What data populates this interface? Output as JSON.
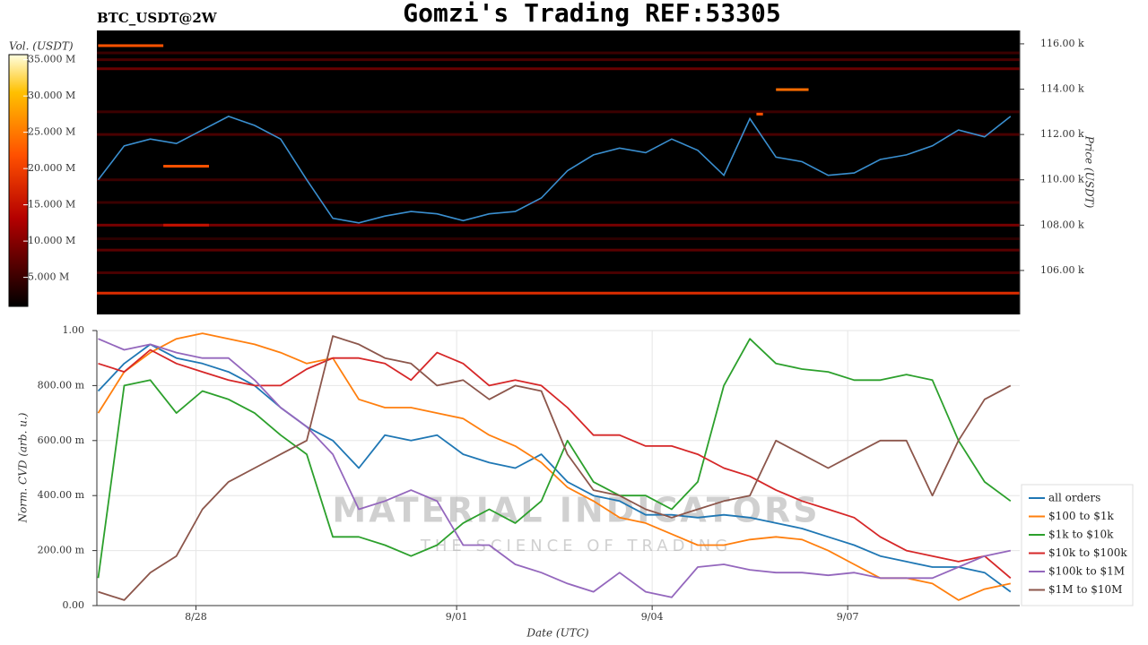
{
  "title": "Gomzi's Trading REF:53305",
  "chart_data": [
    {
      "type": "heatmap",
      "subtitle": "BTC_USDT@2W",
      "y_label": "Price (USDT)",
      "colorbar_label": "Vol. (USDT)",
      "xlim": [
        26.48,
        40.64
      ],
      "ylim": [
        104060,
        116590
      ],
      "yticks": [
        {
          "value": 106000,
          "label": "106.00 k"
        },
        {
          "value": 108000,
          "label": "108.00 k"
        },
        {
          "value": 110000,
          "label": "110.00 k"
        },
        {
          "value": 112000,
          "label": "112.00 k"
        },
        {
          "value": 114000,
          "label": "114.00 k"
        },
        {
          "value": 116000,
          "label": "116.00 k"
        }
      ],
      "clim": [
        1000000,
        35700000
      ],
      "cticks": [
        {
          "value": 5000000,
          "label": "5.000 M"
        },
        {
          "value": 10000000,
          "label": "10.000 M"
        },
        {
          "value": 15000000,
          "label": "15.000 M"
        },
        {
          "value": 20000000,
          "label": "20.000 M"
        },
        {
          "value": 25000000,
          "label": "25.000 M"
        },
        {
          "value": 30000000,
          "label": "30.000 M"
        },
        {
          "value": 35000000,
          "label": "35.000 M"
        }
      ],
      "levels": {
        "price": [
          105000,
          105900,
          106900,
          107400,
          108000,
          109000,
          110000,
          112000,
          113000,
          114900,
          115300,
          115600
        ],
        "volume": [
          18000000,
          6000000,
          7000000,
          4000000,
          9000000,
          5000000,
          5000000,
          6000000,
          5000000,
          8000000,
          6000000,
          5000000
        ]
      },
      "clusters": {
        "price": [
          115920,
          110600,
          113980,
          112900,
          108000
        ],
        "volume": [
          22000000,
          22000000,
          24000000,
          22000000,
          15000000
        ],
        "x0": [
          26.5,
          27.5,
          36.9,
          36.6,
          27.5
        ],
        "x1": [
          27.5,
          28.2,
          37.4,
          36.7,
          28.2
        ]
      },
      "series": [
        {
          "name": "price",
          "color": "#3a8fd0",
          "x": [
            26.5,
            26.9,
            27.3,
            27.7,
            28.1,
            28.5,
            28.9,
            29.3,
            29.7,
            30.1,
            30.5,
            30.9,
            31.3,
            31.7,
            32.1,
            32.5,
            32.9,
            33.3,
            33.7,
            34.1,
            34.5,
            34.9,
            35.3,
            35.7,
            36.1,
            36.5,
            36.9,
            37.3,
            37.7,
            38.1,
            38.5,
            38.9,
            39.3,
            39.7,
            40.1,
            40.5
          ],
          "values": [
            110000,
            111500,
            111800,
            111600,
            112200,
            112800,
            112400,
            111800,
            110000,
            108300,
            108100,
            108400,
            108600,
            108500,
            108200,
            108500,
            108600,
            109200,
            110400,
            111100,
            111400,
            111200,
            111800,
            111300,
            110200,
            112700,
            111000,
            110800,
            110200,
            110300,
            110900,
            111100,
            111500,
            112200,
            111900,
            112800
          ]
        }
      ]
    },
    {
      "type": "line",
      "x_label": "Date (UTC)",
      "y_label": "Norm. CVD (arb. u.)",
      "watermark": [
        "MATERIAL INDICATORS",
        "THE SCIENCE OF TRADING"
      ],
      "grid": true,
      "legend": "lower right",
      "x": [
        26.5,
        26.9,
        27.3,
        27.7,
        28.1,
        28.5,
        28.9,
        29.3,
        29.7,
        30.1,
        30.5,
        30.9,
        31.3,
        31.7,
        32.1,
        32.5,
        32.9,
        33.3,
        33.7,
        34.1,
        34.5,
        34.9,
        35.3,
        35.7,
        36.1,
        36.5,
        36.9,
        37.3,
        37.7,
        38.1,
        38.5,
        38.9,
        39.3,
        39.7,
        40.1,
        40.5
      ],
      "xlim": [
        26.48,
        40.64
      ],
      "xticks": [
        {
          "value": 28,
          "label": "8/28"
        },
        {
          "value": 32,
          "label": "9/01"
        },
        {
          "value": 35,
          "label": "9/04"
        },
        {
          "value": 38,
          "label": "9/07"
        }
      ],
      "ylim": [
        0,
        1
      ],
      "yticks": [
        {
          "value": 0,
          "label": "0.00"
        },
        {
          "value": 0.2,
          "label": "200.00 m"
        },
        {
          "value": 0.4,
          "label": "400.00 m"
        },
        {
          "value": 0.6,
          "label": "600.00 m"
        },
        {
          "value": 0.8,
          "label": "800.00 m"
        },
        {
          "value": 1,
          "label": "1.00"
        }
      ],
      "series": [
        {
          "name": "all orders",
          "color": "#1f77b4",
          "values": [
            0.78,
            0.88,
            0.95,
            0.9,
            0.88,
            0.85,
            0.8,
            0.72,
            0.65,
            0.6,
            0.5,
            0.62,
            0.6,
            0.62,
            0.55,
            0.52,
            0.5,
            0.55,
            0.45,
            0.4,
            0.38,
            0.33,
            0.33,
            0.32,
            0.33,
            0.32,
            0.3,
            0.28,
            0.25,
            0.22,
            0.18,
            0.16,
            0.14,
            0.14,
            0.12,
            0.05
          ]
        },
        {
          "name": "$100 to $1k",
          "color": "#ff7f0e",
          "values": [
            0.7,
            0.85,
            0.92,
            0.97,
            0.99,
            0.97,
            0.95,
            0.92,
            0.88,
            0.9,
            0.75,
            0.72,
            0.72,
            0.7,
            0.68,
            0.62,
            0.58,
            0.52,
            0.43,
            0.38,
            0.32,
            0.3,
            0.26,
            0.22,
            0.22,
            0.24,
            0.25,
            0.24,
            0.2,
            0.15,
            0.1,
            0.1,
            0.08,
            0.02,
            0.06,
            0.08
          ]
        },
        {
          "name": "$1k to $10k",
          "color": "#2ca02c",
          "values": [
            0.1,
            0.8,
            0.82,
            0.7,
            0.78,
            0.75,
            0.7,
            0.62,
            0.55,
            0.25,
            0.25,
            0.22,
            0.18,
            0.22,
            0.3,
            0.35,
            0.3,
            0.38,
            0.6,
            0.45,
            0.4,
            0.4,
            0.35,
            0.45,
            0.8,
            0.97,
            0.88,
            0.86,
            0.85,
            0.82,
            0.82,
            0.84,
            0.82,
            0.6,
            0.45,
            0.38
          ]
        },
        {
          "name": "$10k to $100k",
          "color": "#d62728",
          "values": [
            0.88,
            0.85,
            0.93,
            0.88,
            0.85,
            0.82,
            0.8,
            0.8,
            0.86,
            0.9,
            0.9,
            0.88,
            0.82,
            0.92,
            0.88,
            0.8,
            0.82,
            0.8,
            0.72,
            0.62,
            0.62,
            0.58,
            0.58,
            0.55,
            0.5,
            0.47,
            0.42,
            0.38,
            0.35,
            0.32,
            0.25,
            0.2,
            0.18,
            0.16,
            0.18,
            0.1
          ]
        },
        {
          "name": "$100k to $1M",
          "color": "#9467bd",
          "values": [
            0.97,
            0.93,
            0.95,
            0.92,
            0.9,
            0.9,
            0.82,
            0.72,
            0.65,
            0.55,
            0.35,
            0.38,
            0.42,
            0.38,
            0.22,
            0.22,
            0.15,
            0.12,
            0.08,
            0.05,
            0.12,
            0.05,
            0.03,
            0.14,
            0.15,
            0.13,
            0.12,
            0.12,
            0.11,
            0.12,
            0.1,
            0.1,
            0.1,
            0.14,
            0.18,
            0.2
          ]
        },
        {
          "name": "$1M to $10M",
          "color": "#8c564b",
          "values": [
            0.05,
            0.02,
            0.12,
            0.18,
            0.35,
            0.45,
            0.5,
            0.55,
            0.6,
            0.98,
            0.95,
            0.9,
            0.88,
            0.8,
            0.82,
            0.75,
            0.8,
            0.78,
            0.55,
            0.42,
            0.4,
            0.35,
            0.32,
            0.35,
            0.38,
            0.4,
            0.6,
            0.55,
            0.5,
            0.55,
            0.6,
            0.6,
            0.4,
            0.6,
            0.75,
            0.8
          ]
        }
      ]
    }
  ]
}
